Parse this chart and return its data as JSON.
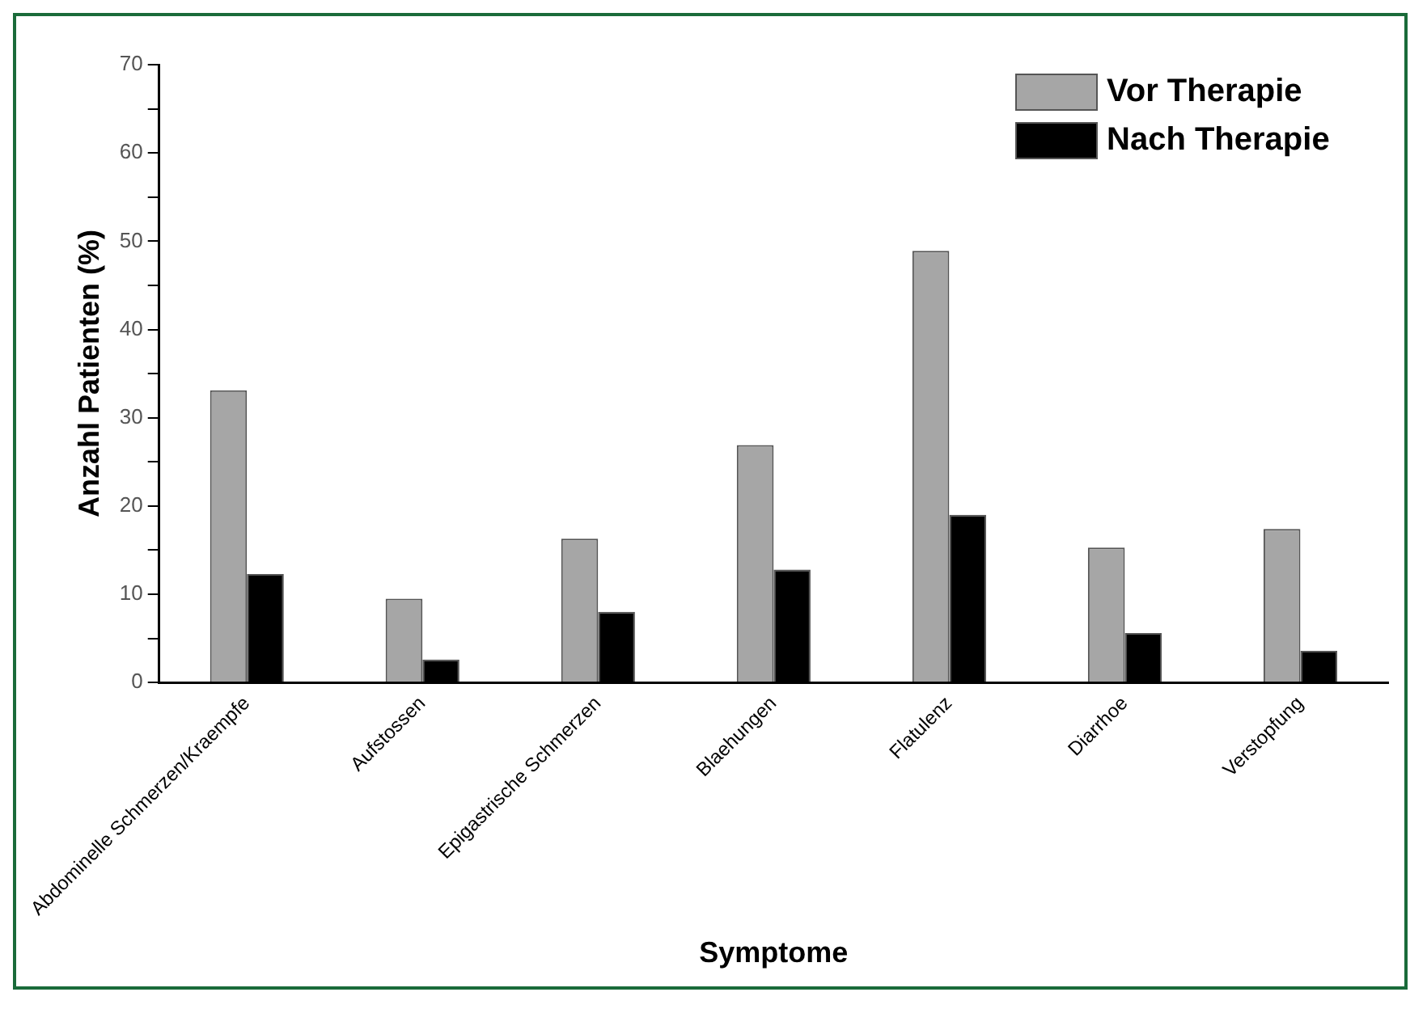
{
  "chart_data": {
    "type": "bar",
    "xlabel": "Symptome",
    "ylabel": "Anzahl Patienten (%)",
    "categories": [
      "Abdominelle Schmerzen/Kraempfe",
      "Aufstossen",
      "Epigastrische Schmerzen",
      "Blaehungen",
      "Flatulenz",
      "Diarrhoe",
      "Verstopfung"
    ],
    "series": [
      {
        "name": "Vor Therapie",
        "color": "#a6a6a6",
        "values": [
          33.1,
          9.5,
          16.3,
          26.9,
          48.9,
          15.3,
          17.4
        ]
      },
      {
        "name": "Nach Therapie",
        "color": "#000000",
        "values": [
          12.3,
          2.6,
          8.0,
          12.8,
          19.0,
          5.6,
          3.6
        ]
      }
    ],
    "ylim": [
      0,
      70
    ],
    "yticks": [
      0,
      {
        "value": 5,
        "label": null
      },
      10,
      {
        "value": 15,
        "label": null
      },
      20,
      {
        "value": 25,
        "label": null
      },
      30,
      {
        "value": 35,
        "label": null
      },
      40,
      {
        "value": 45,
        "label": null
      },
      50,
      {
        "value": 55,
        "label": null
      },
      60,
      {
        "value": 65,
        "label": null
      },
      70
    ],
    "grid": false,
    "legend": "top right"
  }
}
